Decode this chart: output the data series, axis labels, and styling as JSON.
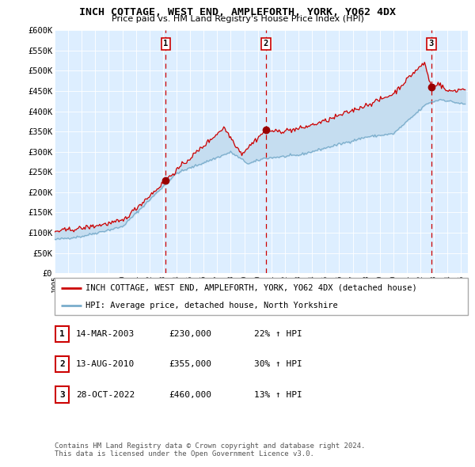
{
  "title": "INCH COTTAGE, WEST END, AMPLEFORTH, YORK, YO62 4DX",
  "subtitle": "Price paid vs. HM Land Registry's House Price Index (HPI)",
  "background_color": "#ffffff",
  "plot_bg_color": "#ddeeff",
  "ylim": [
    0,
    600000
  ],
  "yticks": [
    0,
    50000,
    100000,
    150000,
    200000,
    250000,
    300000,
    350000,
    400000,
    450000,
    500000,
    550000,
    600000
  ],
  "ytick_labels": [
    "£0",
    "£50K",
    "£100K",
    "£150K",
    "£200K",
    "£250K",
    "£300K",
    "£350K",
    "£400K",
    "£450K",
    "£500K",
    "£550K",
    "£600K"
  ],
  "xlim_start": 1995.0,
  "xlim_end": 2025.5,
  "xticks": [
    1995,
    1996,
    1997,
    1998,
    1999,
    2000,
    2001,
    2002,
    2003,
    2004,
    2005,
    2006,
    2007,
    2008,
    2009,
    2010,
    2011,
    2012,
    2013,
    2014,
    2015,
    2016,
    2017,
    2018,
    2019,
    2020,
    2021,
    2022,
    2023,
    2024,
    2025
  ],
  "red_line_color": "#cc0000",
  "blue_line_color": "#7aadcc",
  "fill_color": "#c5ddf0",
  "sale_color": "#990000",
  "dashed_line_color": "#cc0000",
  "sales": [
    {
      "year": 2003.2,
      "value": 230000,
      "label": "1"
    },
    {
      "year": 2010.6,
      "value": 355000,
      "label": "2"
    },
    {
      "year": 2022.8,
      "value": 460000,
      "label": "3"
    }
  ],
  "legend_entries": [
    "INCH COTTAGE, WEST END, AMPLEFORTH, YORK, YO62 4DX (detached house)",
    "HPI: Average price, detached house, North Yorkshire"
  ],
  "table_rows": [
    {
      "num": "1",
      "date": "14-MAR-2003",
      "price": "£230,000",
      "change": "22% ↑ HPI"
    },
    {
      "num": "2",
      "date": "13-AUG-2010",
      "price": "£355,000",
      "change": "30% ↑ HPI"
    },
    {
      "num": "3",
      "date": "28-OCT-2022",
      "price": "£460,000",
      "change": "13% ↑ HPI"
    }
  ],
  "footer": "Contains HM Land Registry data © Crown copyright and database right 2024.\nThis data is licensed under the Open Government Licence v3.0."
}
